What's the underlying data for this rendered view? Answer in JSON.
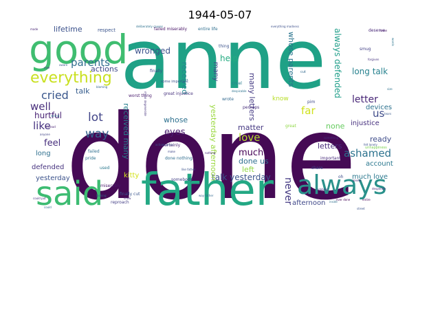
{
  "title": "1944-05-07",
  "words": [
    {
      "text": "done",
      "weight": 100,
      "color": "#450a55"
    },
    {
      "text": "anne",
      "weight": 80,
      "color": "#1fa186"
    },
    {
      "text": "father",
      "weight": 62,
      "color": "#23a884"
    },
    {
      "text": "good",
      "weight": 52,
      "color": "#3fbd70"
    },
    {
      "text": "said",
      "weight": 48,
      "color": "#3dbc72"
    },
    {
      "text": "always",
      "weight": 44,
      "color": "#2a918b"
    },
    {
      "text": "everything",
      "weight": 22,
      "color": "#c9e020"
    },
    {
      "text": "parents",
      "weight": 16,
      "color": "#2f6d8e"
    },
    {
      "text": "lot",
      "weight": 18,
      "color": "#414488"
    },
    {
      "text": "way",
      "weight": 17,
      "color": "#33618d"
    },
    {
      "text": "cried",
      "weight": 16,
      "color": "#39568c"
    },
    {
      "text": "well",
      "weight": 15,
      "color": "#472d7b"
    },
    {
      "text": "like",
      "weight": 15,
      "color": "#45317f"
    },
    {
      "text": "ashamed",
      "weight": 15,
      "color": "#2c728e"
    },
    {
      "text": "far",
      "weight": 15,
      "color": "#cfe11c"
    },
    {
      "text": "love",
      "weight": 15,
      "color": "#b5de2b"
    },
    {
      "text": "us",
      "weight": 15,
      "color": "#3e4a89"
    },
    {
      "text": "letter",
      "weight": 14,
      "color": "#482677"
    },
    {
      "text": "never",
      "weight": 14,
      "color": "#443983"
    },
    {
      "text": "much",
      "weight": 13,
      "color": "#440154"
    },
    {
      "text": "eyes",
      "weight": 13,
      "color": "#481c6e"
    },
    {
      "text": "feel",
      "weight": 13,
      "color": "#472f7d"
    },
    {
      "text": "wronged",
      "weight": 12,
      "color": "#3b518b"
    },
    {
      "text": "hurtful",
      "weight": 12,
      "color": "#482173"
    },
    {
      "text": "help",
      "weight": 12,
      "color": "#25ab82"
    },
    {
      "text": "always defended",
      "weight": 12,
      "color": "#1f9e89"
    },
    {
      "text": "long talk",
      "weight": 12,
      "color": "#26818e"
    },
    {
      "text": "talk yesterday",
      "weight": 12,
      "color": "#3a548c"
    },
    {
      "text": "whose parents",
      "weight": 11,
      "color": "#2b748e"
    },
    {
      "text": "many letters",
      "weight": 11,
      "color": "#443a83"
    },
    {
      "text": "received many",
      "weight": 11,
      "color": "#27808e"
    },
    {
      "text": "yesterday afternoon",
      "weight": 11,
      "color": "#99d83d"
    },
    {
      "text": "lifetime",
      "weight": 11,
      "color": "#3b518b"
    },
    {
      "text": "actions",
      "weight": 11,
      "color": "#3f4788"
    },
    {
      "text": "talk",
      "weight": 11,
      "color": "#365c8d"
    },
    {
      "text": "whose",
      "weight": 11,
      "color": "#2d708e"
    },
    {
      "text": "received",
      "weight": 11,
      "color": "#24868e"
    },
    {
      "text": "matter",
      "weight": 11,
      "color": "#453882"
    },
    {
      "text": "done us",
      "weight": 11,
      "color": "#2e6e8e"
    },
    {
      "text": "left",
      "weight": 11,
      "color": "#90d743"
    },
    {
      "text": "ready",
      "weight": 11,
      "color": "#3e4c8a"
    },
    {
      "text": "letters",
      "weight": 11,
      "color": "#472c7a"
    },
    {
      "text": "none",
      "weight": 11,
      "color": "#65cb5e"
    },
    {
      "text": "devices",
      "weight": 10,
      "color": "#2c718e"
    },
    {
      "text": "injustice",
      "weight": 10,
      "color": "#46307e"
    },
    {
      "text": "account",
      "weight": 10,
      "color": "#2a778e"
    },
    {
      "text": "much love",
      "weight": 10,
      "color": "#2a778e"
    },
    {
      "text": "afternoon",
      "weight": 10,
      "color": "#3f4889"
    },
    {
      "text": "defended",
      "weight": 10,
      "color": "#46337f"
    },
    {
      "text": "long",
      "weight": 10,
      "color": "#2e6f8e"
    },
    {
      "text": "yesterday",
      "weight": 10,
      "color": "#3b528b"
    },
    {
      "text": "kitty",
      "weight": 10,
      "color": "#d2e21b"
    },
    {
      "text": "know",
      "weight": 9,
      "color": "#b8de29"
    },
    {
      "text": "many",
      "weight": 10,
      "color": "#404588"
    },
    {
      "text": "respect",
      "weight": 7,
      "color": "#3a548c"
    },
    {
      "text": "failed miserably",
      "weight": 6,
      "color": "#481467"
    },
    {
      "text": "entire life",
      "weight": 6,
      "color": "#2e6e8e"
    },
    {
      "text": "deserve",
      "weight": 6,
      "color": "#482878"
    },
    {
      "text": "thing",
      "weight": 6,
      "color": "#3b528b"
    },
    {
      "text": "smug",
      "weight": 6,
      "color": "#424086"
    },
    {
      "text": "finally",
      "weight": 6,
      "color": "#3e4989"
    },
    {
      "text": "great injustice",
      "weight": 6,
      "color": "#46327e"
    },
    {
      "text": "worst thing",
      "weight": 6,
      "color": "#481a6c"
    },
    {
      "text": "wrote",
      "weight": 6,
      "color": "#31688e"
    },
    {
      "text": "perhaps",
      "weight": 6,
      "color": "#472e7c"
    },
    {
      "text": "certainly",
      "weight": 6,
      "color": "#482374"
    },
    {
      "text": "pride",
      "weight": 6,
      "color": "#2c728e"
    },
    {
      "text": "used",
      "weight": 6,
      "color": "#2a788e"
    },
    {
      "text": "miserably",
      "weight": 6,
      "color": "#48186a"
    },
    {
      "text": "finally cut",
      "weight": 6,
      "color": "#3a548c"
    },
    {
      "text": "reproach",
      "weight": 6,
      "color": "#433e85"
    },
    {
      "text": "somebody",
      "weight": 6,
      "color": "#424086"
    },
    {
      "text": "done nothing",
      "weight": 6,
      "color": "#2f6c8e"
    },
    {
      "text": "share",
      "weight": 6,
      "color": "#3e4a89"
    },
    {
      "text": "important",
      "weight": 6,
      "color": "#472a7a"
    },
    {
      "text": "oh",
      "weight": 6,
      "color": "#3d4d8a"
    },
    {
      "text": "unhappiness",
      "weight": 5,
      "color": "#7ad151"
    },
    {
      "text": "great",
      "weight": 6,
      "color": "#8fd744"
    },
    {
      "text": "cruel",
      "weight": 6,
      "color": "#287d8e"
    },
    {
      "text": "deliberately causes",
      "weight": 4,
      "color": "#2d718e"
    },
    {
      "text": "everything madness",
      "weight": 4,
      "color": "#3c4f8a"
    },
    {
      "text": "made",
      "weight": 4,
      "color": "#482475"
    },
    {
      "text": "mean",
      "weight": 4,
      "color": "#48186a"
    },
    {
      "text": "words",
      "weight": 4,
      "color": "#2b748e"
    },
    {
      "text": "forgiven",
      "weight": 4,
      "color": "#46337f"
    },
    {
      "text": "size",
      "weight": 4,
      "color": "#2c718e"
    },
    {
      "text": "tears",
      "weight": 4,
      "color": "#38588c"
    },
    {
      "text": "despicable",
      "weight": 4,
      "color": "#2c728e"
    },
    {
      "text": "ever done",
      "weight": 4,
      "color": "#440154"
    },
    {
      "text": "entire",
      "weight": 4,
      "color": "#440154"
    },
    {
      "text": "street",
      "weight": 4,
      "color": "#3a548c"
    },
    {
      "text": "could",
      "weight": 4,
      "color": "#2f6b8e"
    },
    {
      "text": "blaming",
      "weight": 4,
      "color": "#33638d"
    },
    {
      "text": "aware",
      "weight": 4,
      "color": "#38598c"
    },
    {
      "text": "ever",
      "weight": 4,
      "color": "#46307e"
    },
    {
      "text": "something",
      "weight": 4,
      "color": "#472d7b"
    },
    {
      "text": "sobbing",
      "weight": 4,
      "color": "#46307e"
    },
    {
      "text": "instead",
      "weight": 4,
      "color": "#482173"
    },
    {
      "text": "wrong",
      "weight": 4,
      "color": "#2d718e"
    },
    {
      "text": "anyone",
      "weight": 4,
      "color": "#404387"
    },
    {
      "text": "could put",
      "weight": 4,
      "color": "#46337f"
    },
    {
      "text": "looking",
      "weight": 4,
      "color": "#33628d"
    },
    {
      "text": "show",
      "weight": 4,
      "color": "#472f7d"
    },
    {
      "text": "make",
      "weight": 4,
      "color": "#3f4889"
    },
    {
      "text": "felt lonely",
      "weight": 4,
      "color": "#3b528b"
    },
    {
      "text": "like father",
      "weight": 4,
      "color": "#3b528b"
    },
    {
      "text": "desperate",
      "weight": 4,
      "color": "#482475"
    },
    {
      "text": "some important",
      "weight": 5,
      "color": "#3a548c"
    },
    {
      "text": "way father",
      "weight": 4,
      "color": "#31688e"
    },
    {
      "text": "inside",
      "weight": 4,
      "color": "#2e6e8e"
    },
    {
      "text": "failed",
      "weight": 6,
      "color": "#2e6e8e"
    },
    {
      "text": "actions anne",
      "weight": 4,
      "color": "#3b528b"
    },
    {
      "text": "nothing",
      "weight": 4,
      "color": "#472a7a"
    },
    {
      "text": "lonely",
      "weight": 4,
      "color": "#482374"
    },
    {
      "text": "cut",
      "weight": 5,
      "color": "#31688e"
    },
    {
      "text": "pim",
      "weight": 6,
      "color": "#3e4989"
    },
    {
      "text": "mean degenerate",
      "weight": 4,
      "color": "#46327e"
    }
  ]
}
